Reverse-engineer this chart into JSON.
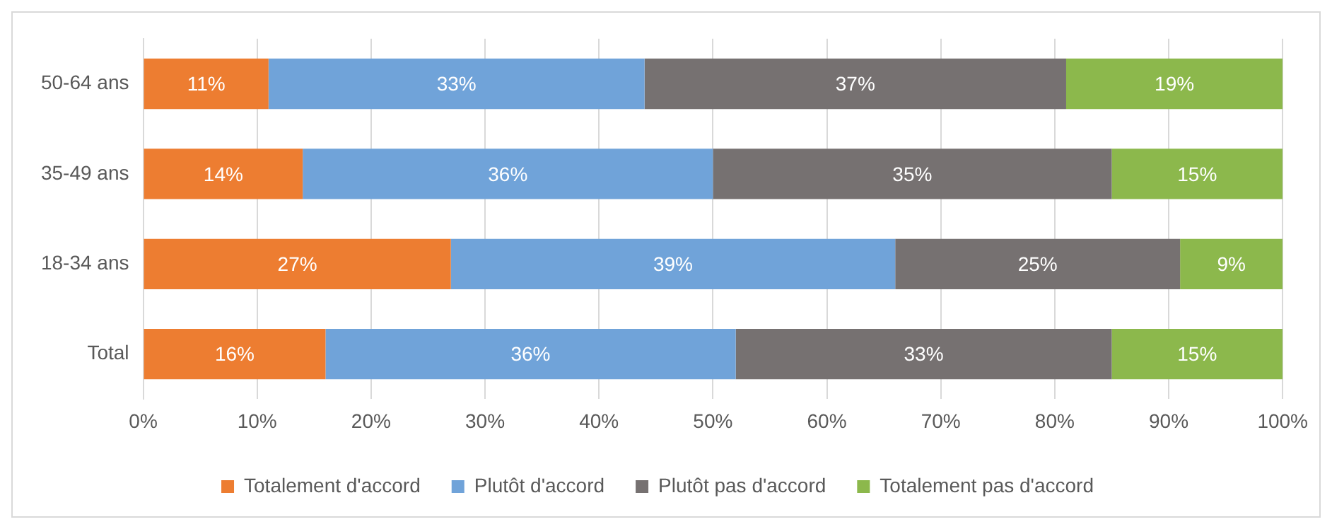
{
  "chart_data": {
    "type": "bar",
    "orientation": "horizontal",
    "stacked": true,
    "categories": [
      "50-64 ans",
      "35-49 ans",
      "18-34 ans",
      "Total"
    ],
    "series": [
      {
        "name": "Totalement d'accord",
        "color": "#ed7d31",
        "values": [
          11,
          14,
          27,
          16
        ],
        "value_labels": [
          "11%",
          "14%",
          "27%",
          "16%"
        ]
      },
      {
        "name": "Plutôt d'accord",
        "color": "#70a3d9",
        "values": [
          33,
          36,
          39,
          36
        ],
        "value_labels": [
          "33%",
          "36%",
          "39%",
          "36%"
        ]
      },
      {
        "name": "Plutôt pas d'accord",
        "color": "#767171",
        "values": [
          37,
          35,
          25,
          33
        ],
        "value_labels": [
          "37%",
          "35%",
          "25%",
          "33%"
        ]
      },
      {
        "name": "Totalement pas d'accord",
        "color": "#8cb84c",
        "values": [
          19,
          15,
          9,
          15
        ],
        "value_labels": [
          "19%",
          "15%",
          "9%",
          "15%"
        ]
      }
    ],
    "xlim": [
      0,
      100
    ],
    "xticks": [
      {
        "value": 0,
        "label": "0%"
      },
      {
        "value": 10,
        "label": "10%"
      },
      {
        "value": 20,
        "label": "20%"
      },
      {
        "value": 30,
        "label": "30%"
      },
      {
        "value": 40,
        "label": "40%"
      },
      {
        "value": 50,
        "label": "50%"
      },
      {
        "value": 60,
        "label": "60%"
      },
      {
        "value": 70,
        "label": "70%"
      },
      {
        "value": 80,
        "label": "80%"
      },
      {
        "value": 90,
        "label": "90%"
      },
      {
        "value": 100,
        "label": "100%"
      }
    ],
    "grid": "x",
    "legend": "bottom"
  }
}
